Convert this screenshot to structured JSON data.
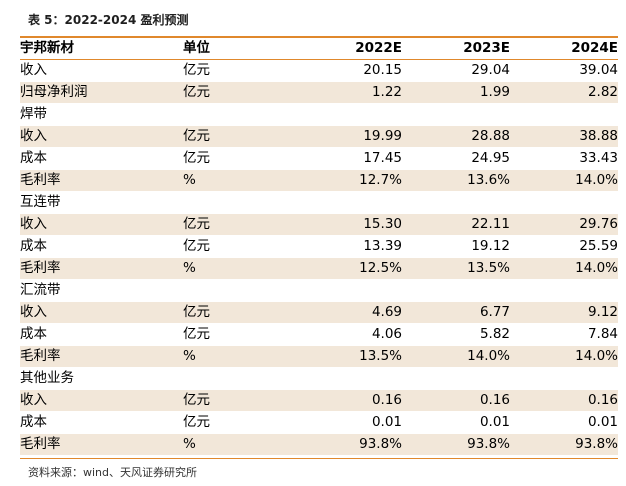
{
  "title": "表 5：2022-2024 盈利预测",
  "colors": {
    "accent": "#e0882c",
    "row_shade": "#f2e7d9"
  },
  "header": {
    "name": "宇邦新材",
    "unit": "单位",
    "y1": "2022E",
    "y2": "2023E",
    "y3": "2024E"
  },
  "rows": [
    {
      "name": "收入",
      "unit": "亿元",
      "y1": "20.15",
      "y2": "29.04",
      "y3": "39.04",
      "shade": false
    },
    {
      "name": "归母净利润",
      "unit": "亿元",
      "y1": "1.22",
      "y2": "1.99",
      "y3": "2.82",
      "shade": true
    },
    {
      "name": "焊带",
      "unit": "",
      "y1": "",
      "y2": "",
      "y3": "",
      "shade": false
    },
    {
      "name": "收入",
      "unit": "亿元",
      "y1": "19.99",
      "y2": "28.88",
      "y3": "38.88",
      "shade": true
    },
    {
      "name": "成本",
      "unit": "亿元",
      "y1": "17.45",
      "y2": "24.95",
      "y3": "33.43",
      "shade": false
    },
    {
      "name": "毛利率",
      "unit": "%",
      "y1": "12.7%",
      "y2": "13.6%",
      "y3": "14.0%",
      "shade": true
    },
    {
      "name": "互连带",
      "unit": "",
      "y1": "",
      "y2": "",
      "y3": "",
      "shade": false
    },
    {
      "name": "收入",
      "unit": "亿元",
      "y1": "15.30",
      "y2": "22.11",
      "y3": "29.76",
      "shade": true
    },
    {
      "name": "成本",
      "unit": "亿元",
      "y1": "13.39",
      "y2": "19.12",
      "y3": "25.59",
      "shade": false
    },
    {
      "name": "毛利率",
      "unit": "%",
      "y1": "12.5%",
      "y2": "13.5%",
      "y3": "14.0%",
      "shade": true
    },
    {
      "name": "汇流带",
      "unit": "",
      "y1": "",
      "y2": "",
      "y3": "",
      "shade": false
    },
    {
      "name": "收入",
      "unit": "亿元",
      "y1": "4.69",
      "y2": "6.77",
      "y3": "9.12",
      "shade": true
    },
    {
      "name": "成本",
      "unit": "亿元",
      "y1": "4.06",
      "y2": "5.82",
      "y3": "7.84",
      "shade": false
    },
    {
      "name": "毛利率",
      "unit": "%",
      "y1": "13.5%",
      "y2": "14.0%",
      "y3": "14.0%",
      "shade": true
    },
    {
      "name": "其他业务",
      "unit": "",
      "y1": "",
      "y2": "",
      "y3": "",
      "shade": false
    },
    {
      "name": "收入",
      "unit": "亿元",
      "y1": "0.16",
      "y2": "0.16",
      "y3": "0.16",
      "shade": true
    },
    {
      "name": "成本",
      "unit": "亿元",
      "y1": "0.01",
      "y2": "0.01",
      "y3": "0.01",
      "shade": false
    },
    {
      "name": "毛利率",
      "unit": "%",
      "y1": "93.8%",
      "y2": "93.8%",
      "y3": "93.8%",
      "shade": true
    }
  ],
  "source": "资料来源：wind、天风证券研究所"
}
